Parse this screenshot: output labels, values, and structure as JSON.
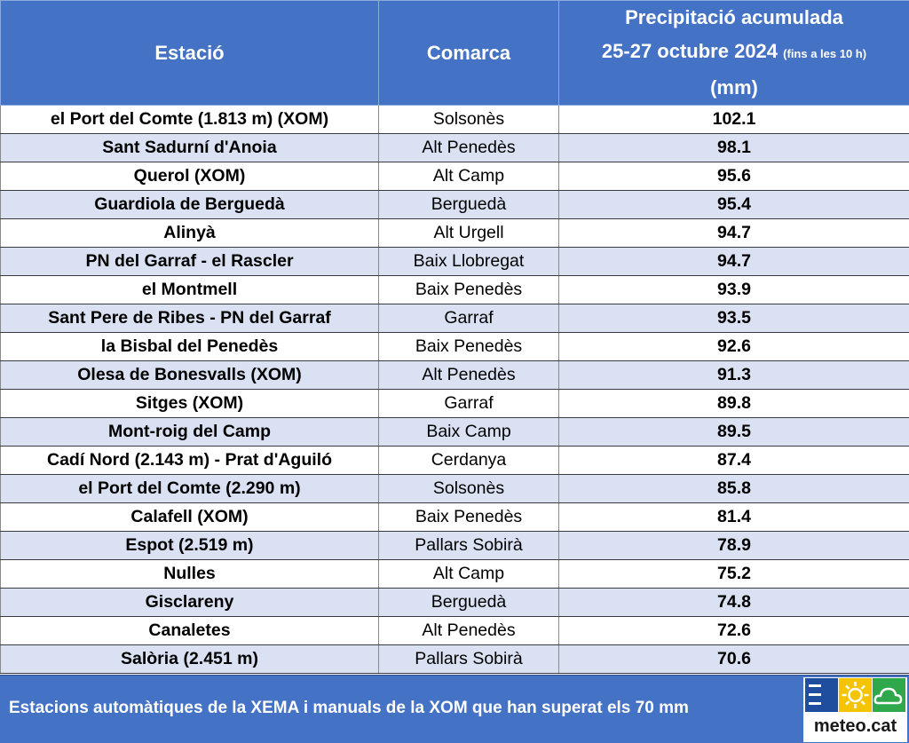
{
  "headers": {
    "station": "Estació",
    "comarca": "Comarca",
    "precip_line1": "Precipitació acumulada",
    "precip_line2_main": "25-27 octubre 2024",
    "precip_line2_small": "(fins a les 10 h)",
    "precip_line3": "(mm)"
  },
  "rows": [
    {
      "station": "el Port del Comte (1.813 m) (XOM)",
      "comarca": "Solsonès",
      "value": "102.1"
    },
    {
      "station": "Sant Sadurní d'Anoia",
      "comarca": "Alt Penedès",
      "value": "98.1"
    },
    {
      "station": "Querol (XOM)",
      "comarca": "Alt Camp",
      "value": "95.6"
    },
    {
      "station": "Guardiola de Berguedà",
      "comarca": "Berguedà",
      "value": "95.4"
    },
    {
      "station": "Alinyà",
      "comarca": "Alt Urgell",
      "value": "94.7"
    },
    {
      "station": "PN del Garraf - el Rascler",
      "comarca": "Baix Llobregat",
      "value": "94.7"
    },
    {
      "station": "el Montmell",
      "comarca": "Baix Penedès",
      "value": "93.9"
    },
    {
      "station": "Sant Pere de Ribes - PN del Garraf",
      "comarca": "Garraf",
      "value": "93.5"
    },
    {
      "station": "la Bisbal del Penedès",
      "comarca": "Baix Penedès",
      "value": "92.6"
    },
    {
      "station": "Olesa de Bonesvalls (XOM)",
      "comarca": "Alt Penedès",
      "value": "91.3"
    },
    {
      "station": "Sitges (XOM)",
      "comarca": "Garraf",
      "value": "89.8"
    },
    {
      "station": "Mont-roig del Camp",
      "comarca": "Baix Camp",
      "value": "89.5"
    },
    {
      "station": "Cadí Nord (2.143 m) - Prat d'Aguiló",
      "comarca": "Cerdanya",
      "value": "87.4"
    },
    {
      "station": "el Port del Comte (2.290 m)",
      "comarca": "Solsonès",
      "value": "85.8"
    },
    {
      "station": "Calafell (XOM)",
      "comarca": "Baix Penedès",
      "value": "81.4"
    },
    {
      "station": "Espot (2.519 m)",
      "comarca": "Pallars Sobirà",
      "value": "78.9"
    },
    {
      "station": "Nulles",
      "comarca": "Alt Camp",
      "value": "75.2"
    },
    {
      "station": "Gisclareny",
      "comarca": "Berguedà",
      "value": "74.8"
    },
    {
      "station": "Canaletes",
      "comarca": "Alt Penedès",
      "value": "72.6"
    },
    {
      "station": "Salòria (2.451 m)",
      "comarca": "Pallars Sobirà",
      "value": "70.6"
    }
  ],
  "footer": {
    "caption": "Estacions automàtiques de la XEMA i manuals de la XOM que han superat els 70 mm",
    "logo_text": "meteo.cat",
    "logo_icons": [
      "menu-icon",
      "sun-icon",
      "cloud-icon"
    ]
  },
  "colors": {
    "header_bg": "#4472c4",
    "stripe": "#d9e1f2",
    "logo_blue": "#1f4e9e",
    "logo_yellow": "#f5c400",
    "logo_green": "#2ea84a"
  }
}
